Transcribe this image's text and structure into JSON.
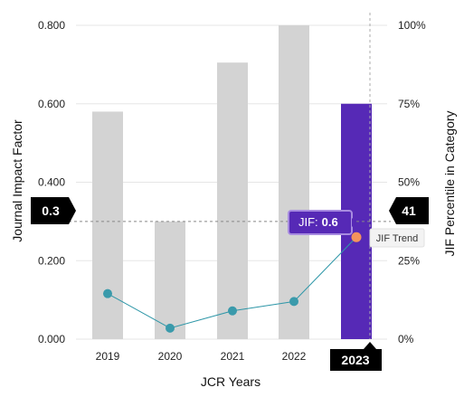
{
  "chart_data": {
    "type": "bar",
    "categories": [
      "2019",
      "2020",
      "2021",
      "2022",
      "2023"
    ],
    "series": [
      {
        "name": "JIF",
        "values": [
          0.58,
          0.3,
          0.705,
          0.8,
          0.6
        ],
        "axis": "left",
        "highlight_index": 4
      },
      {
        "name": "JIF Trend",
        "values": [
          14.5,
          3.5,
          9,
          12,
          32.5
        ],
        "axis": "right",
        "type": "line"
      }
    ],
    "xlabel": "JCR Years",
    "ylabel": "Journal Impact Factor",
    "ylabel_right": "JIF Percentile in Category",
    "ylim": [
      0,
      0.8
    ],
    "ylim_right": [
      0,
      100
    ],
    "left_ticks": [
      "0.000",
      "0.200",
      "0.400",
      "0.600",
      "0.800"
    ],
    "right_ticks": [
      "0%",
      "25%",
      "50%",
      "75%",
      "100%"
    ],
    "grid": true,
    "crosshair": {
      "left_value": 0.3,
      "left_label": "0.3",
      "right_label": "41",
      "x_label": "2023"
    },
    "tooltip": {
      "prefix": "JIF:",
      "value": "0.6"
    },
    "legend": "JIF Trend",
    "colors": {
      "bar": "#d3d3d3",
      "highlight": "#5629b6",
      "trend_line": "#2f97a8",
      "trend_point": "#3a9aab",
      "highlight_point": "#f5945c",
      "flag": "#000000",
      "grid": "#e6e6e6"
    }
  }
}
